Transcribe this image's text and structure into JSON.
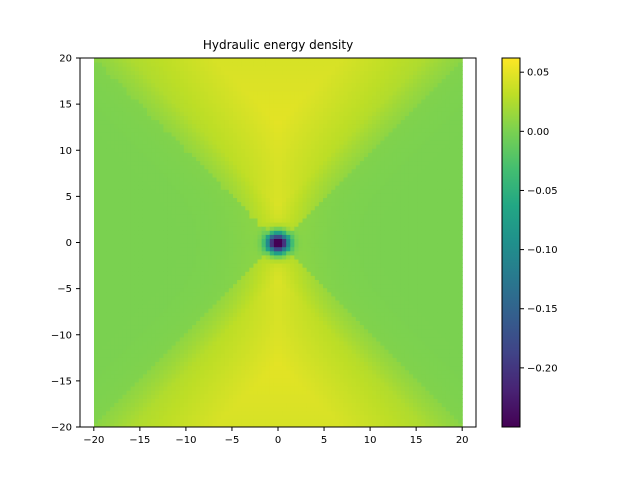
{
  "chart_data": {
    "type": "heatmap",
    "title": "Hydraulic energy density",
    "xlabel": "",
    "ylabel": "",
    "xlim": [
      -21.5,
      21.5
    ],
    "ylim": [
      -20,
      20
    ],
    "data_extent": {
      "x": [
        -20,
        20
      ],
      "y": [
        -20,
        20
      ]
    },
    "x_ticks": [
      -20,
      -15,
      -10,
      -5,
      0,
      5,
      10,
      15,
      20
    ],
    "y_ticks": [
      -20,
      -15,
      -10,
      -5,
      0,
      5,
      10,
      15,
      20
    ],
    "colorbar": {
      "range": [
        -0.25,
        0.062
      ],
      "ticks": [
        0.05,
        0.0,
        -0.05,
        -0.1,
        -0.15,
        -0.2
      ],
      "tick_labels": [
        "0.05",
        "0.00",
        "−0.05",
        "−0.10",
        "−0.15",
        "−0.20"
      ],
      "colormap": "viridis"
    },
    "field": {
      "background": 0.0,
      "peak": 0.06,
      "minimum": -0.25,
      "description_points": [
        {
          "x": 0,
          "y": 0,
          "value": -0.25
        },
        {
          "x": 0,
          "y": 2,
          "value": 0.06
        },
        {
          "x": 0,
          "y": -2,
          "value": 0.06
        },
        {
          "x": -15,
          "y": 0,
          "value": 0.0
        },
        {
          "x": 15,
          "y": 0,
          "value": 0.0
        },
        {
          "x": 0,
          "y": 18,
          "value": 0.03
        },
        {
          "x": 0,
          "y": -18,
          "value": 0.03
        }
      ]
    },
    "grid": false
  }
}
